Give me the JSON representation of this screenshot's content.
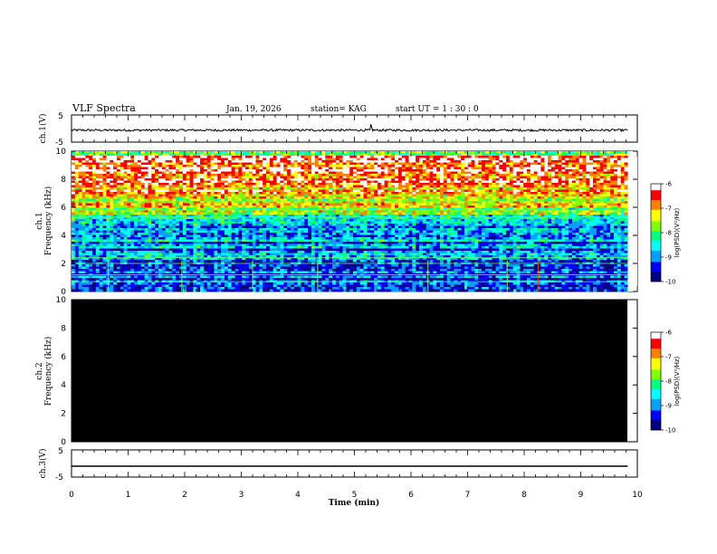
{
  "header": {
    "title": "VLF Spectra",
    "date": "Jan. 19, 2026",
    "station": "station= KAG",
    "start_ut": "start  UT =   1 : 30 : 0"
  },
  "chart_data": [
    {
      "type": "line",
      "panel": "ch1-waveform",
      "ylabel": "ch.1(V)",
      "ylim": [
        -5,
        5
      ],
      "yticks": [
        "5",
        "-5"
      ],
      "x": [
        0,
        10
      ],
      "y_mean": -0.6,
      "note": "noisy waveform near constant level"
    },
    {
      "type": "heatmap",
      "panel": "ch1-spectrogram",
      "ylabel": "ch.1\nFrequency (kHz)",
      "ylabel_line1": "ch.1",
      "ylabel_line2": "Frequency (kHz)",
      "ylim": [
        0,
        10
      ],
      "yticks": [
        "0",
        "2",
        "4",
        "6",
        "8",
        "10"
      ],
      "xlim": [
        0,
        9.83
      ],
      "colorbar": {
        "label": "log(PSD)(V²/Hz)",
        "range": [
          -10,
          -6
        ],
        "ticks": [
          "-6",
          "-7",
          "-8",
          "-9",
          "-10"
        ]
      },
      "spike_times_min": [
        0.65,
        1.95,
        3.2,
        4.35,
        6.3,
        7.7,
        8.25
      ]
    },
    {
      "type": "heatmap",
      "panel": "ch2-spectrogram",
      "ylabel_line1": "ch.2",
      "ylabel_line2": "Frequency (kHz)",
      "ylim": [
        0,
        10
      ],
      "yticks": [
        "0",
        "2",
        "4",
        "6",
        "8",
        "10"
      ],
      "xlim": [
        0,
        9.83
      ],
      "fill": "#000000",
      "colorbar": {
        "label": "log(PSD)(V²/Hz)",
        "range": [
          -10,
          -6
        ],
        "ticks": [
          "-6",
          "-7",
          "-8",
          "-9",
          "-10"
        ]
      }
    },
    {
      "type": "line",
      "panel": "ch3-waveform",
      "ylabel": "ch.3(V)",
      "ylim": [
        -5,
        5
      ],
      "yticks": [
        "5",
        "-5"
      ],
      "x": [
        0,
        9.83
      ],
      "y": [
        -1,
        -1
      ]
    }
  ],
  "xaxis": {
    "label": "Time (min)",
    "range": [
      0,
      10
    ],
    "ticks": [
      "0",
      "1",
      "2",
      "3",
      "4",
      "5",
      "6",
      "7",
      "8",
      "9",
      "10"
    ]
  },
  "colors": {
    "colormap": [
      "#000080",
      "#0000ff",
      "#00a0ff",
      "#00ffff",
      "#00ff80",
      "#80ff00",
      "#ffff00",
      "#ff8000",
      "#ff0000",
      "#ffffff"
    ]
  }
}
